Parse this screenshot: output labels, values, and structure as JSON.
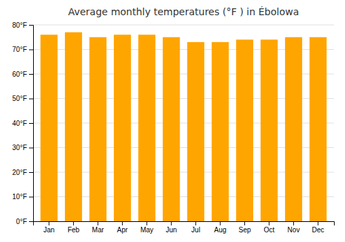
{
  "chart_data": {
    "type": "bar",
    "title": "Average monthly temperatures (°F ) in Ébolowa",
    "categories": [
      "Jan",
      "Feb",
      "Mar",
      "Apr",
      "May",
      "Jun",
      "Jul",
      "Aug",
      "Sep",
      "Oct",
      "Nov",
      "Dec"
    ],
    "values": [
      76,
      77,
      75,
      76,
      76,
      75,
      73,
      73,
      74,
      74,
      75,
      75
    ],
    "color": "#FFA500",
    "ylim": [
      0,
      80
    ],
    "yticks": [
      {
        "value": 0,
        "label": "0°F"
      },
      {
        "value": 10,
        "label": "10°F"
      },
      {
        "value": 20,
        "label": "20°F"
      },
      {
        "value": 30,
        "label": "30°F"
      },
      {
        "value": 40,
        "label": "40°F"
      },
      {
        "value": 50,
        "label": "50°F"
      },
      {
        "value": 60,
        "label": "60°F"
      },
      {
        "value": 70,
        "label": "70°F"
      },
      {
        "value": 80,
        "label": "80°F"
      }
    ],
    "grid": true
  }
}
